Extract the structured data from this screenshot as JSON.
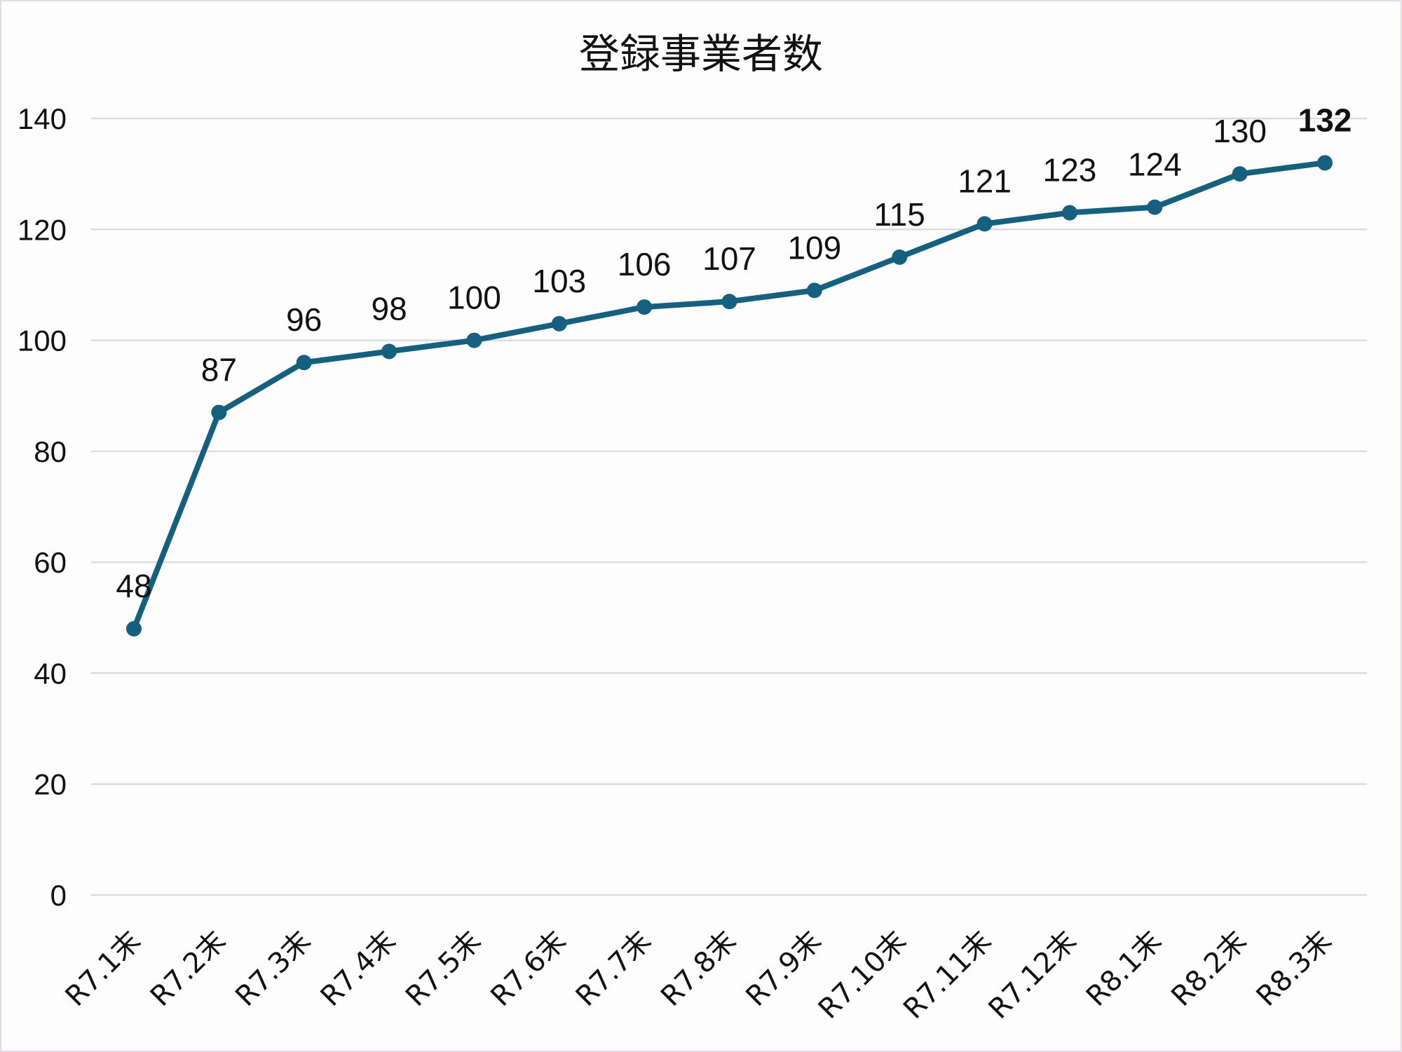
{
  "chart_data": {
    "type": "line",
    "title": "登録事業者数",
    "xlabel": "",
    "ylabel": "",
    "categories": [
      "R7.1末",
      "R7.2末",
      "R7.3末",
      "R7.4末",
      "R7.5末",
      "R7.6末",
      "R7.7末",
      "R7.8末",
      "R7.9末",
      "R7.10末",
      "R7.11末",
      "R7.12末",
      "R8.1末",
      "R8.2末",
      "R8.3末"
    ],
    "series": [
      {
        "name": "登録事業者数",
        "values": [
          48,
          87,
          96,
          98,
          100,
          103,
          106,
          107,
          109,
          115,
          121,
          123,
          124,
          130,
          132
        ],
        "color": "#16607f",
        "marker": "circle",
        "data_labels": true
      }
    ],
    "ylim": [
      0,
      140
    ],
    "yticks": [
      0,
      20,
      40,
      60,
      80,
      100,
      120,
      140
    ],
    "grid": true,
    "legend": "none",
    "highlight_last_label_bold": true
  },
  "colors": {
    "line": "#16607f",
    "grid": "#dcdcdc",
    "background": "#fdfdfd",
    "border": "#e2dce2",
    "text": "#111111"
  }
}
